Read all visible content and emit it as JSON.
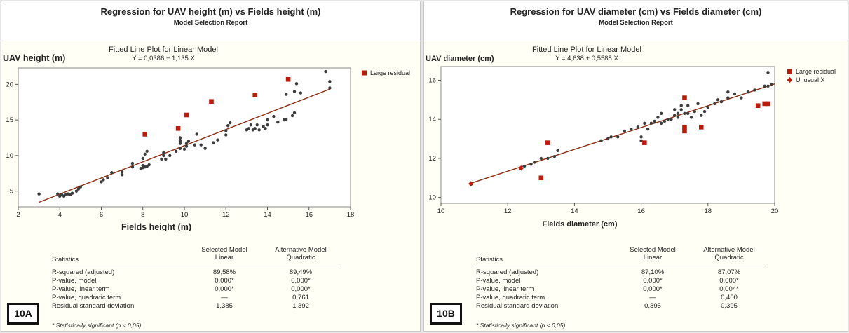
{
  "panels": [
    {
      "id": "A",
      "title": "Regression for UAV height (m) vs Fields height (m)",
      "subtitle": "Model Selection Report",
      "badge": "10A",
      "footnote": "* Statistically significant (p < 0,05)",
      "stats": {
        "col0": "Statistics",
        "col1a": "Selected Model",
        "col1b": "Linear",
        "col2a": "Alternative Model",
        "col2b": "Quadratic",
        "rows": [
          {
            "label": "R-squared (adjusted)",
            "sel": "89,58%",
            "alt": "89,49%"
          },
          {
            "label": "P-value, model",
            "sel": "0,000*",
            "alt": "0,000*"
          },
          {
            "label": "P-value, linear term",
            "sel": "0,000*",
            "alt": "0,000*"
          },
          {
            "label": "P-value, quadratic term",
            "sel": "—",
            "alt": "0,761"
          },
          {
            "label": "Residual standard deviation",
            "sel": "1,385",
            "alt": "1,392"
          }
        ]
      }
    },
    {
      "id": "B",
      "title": "Regression for UAV diameter (cm) vs Fields diameter (cm)",
      "subtitle": "Model Selection Report",
      "badge": "10B",
      "footnote": "* Statistically significant (p < 0,05)",
      "stats": {
        "col0": "Statistics",
        "col1a": "Selected Model",
        "col1b": "Linear",
        "col2a": "Alternative Model",
        "col2b": "Quadratic",
        "rows": [
          {
            "label": "R-squared (adjusted)",
            "sel": "87,10%",
            "alt": "87,07%"
          },
          {
            "label": "P-value, model",
            "sel": "0,000*",
            "alt": "0,000*"
          },
          {
            "label": "P-value, linear term",
            "sel": "0,000*",
            "alt": "0,004*"
          },
          {
            "label": "P-value, quadratic term",
            "sel": "—",
            "alt": "0,400"
          },
          {
            "label": "Residual standard deviation",
            "sel": "0,395",
            "alt": "0,395"
          }
        ]
      }
    }
  ],
  "chart_data": [
    {
      "type": "scatter",
      "title": "Fitted Line Plot for Linear Model",
      "equation": "Y = 0,0386 + 1,135 X",
      "xlabel": "Fields height (m)",
      "ylabel": "UAV height (m)",
      "xlim": [
        2,
        18
      ],
      "ylim": [
        2.8,
        22.3
      ],
      "xticks": [
        2,
        4,
        6,
        8,
        10,
        12,
        14,
        16,
        18
      ],
      "yticks": [
        5,
        10,
        15,
        20
      ],
      "fit": {
        "intercept": 0.0386,
        "slope": 1.135,
        "x_range": [
          3,
          17
        ]
      },
      "colors": {
        "points": "#3c3c3c",
        "fit": "#8b2e10",
        "large_residual": "#b81d0c"
      },
      "legend": [
        {
          "label": "Large residual",
          "marker": "square"
        }
      ],
      "series": [
        {
          "name": "Large residual",
          "marker": "square",
          "points": [
            [
              8.1,
              13.0
            ],
            [
              9.7,
              13.8
            ],
            [
              10.1,
              15.7
            ],
            [
              11.3,
              17.6
            ],
            [
              13.4,
              18.5
            ],
            [
              15.0,
              20.7
            ]
          ]
        },
        {
          "name": "Observations",
          "marker": "circle",
          "points": [
            [
              3.0,
              4.6
            ],
            [
              3.9,
              4.6
            ],
            [
              4.0,
              4.3
            ],
            [
              4.1,
              4.5
            ],
            [
              4.2,
              4.3
            ],
            [
              4.3,
              4.5
            ],
            [
              4.4,
              4.6
            ],
            [
              4.5,
              4.5
            ],
            [
              4.6,
              4.7
            ],
            [
              4.8,
              5.0
            ],
            [
              4.9,
              5.3
            ],
            [
              5.0,
              5.6
            ],
            [
              6.0,
              6.3
            ],
            [
              6.1,
              6.6
            ],
            [
              6.3,
              6.9
            ],
            [
              6.5,
              7.6
            ],
            [
              7.0,
              7.3
            ],
            [
              7.0,
              7.7
            ],
            [
              7.5,
              8.4
            ],
            [
              7.5,
              8.9
            ],
            [
              7.9,
              8.2
            ],
            [
              8.0,
              8.3
            ],
            [
              8.0,
              8.6
            ],
            [
              8.1,
              8.4
            ],
            [
              8.2,
              8.5
            ],
            [
              8.3,
              8.7
            ],
            [
              8.0,
              9.6
            ],
            [
              8.1,
              10.2
            ],
            [
              8.2,
              10.6
            ],
            [
              8.9,
              9.5
            ],
            [
              9.0,
              10.0
            ],
            [
              9.0,
              10.4
            ],
            [
              9.1,
              9.5
            ],
            [
              9.3,
              10.0
            ],
            [
              9.6,
              10.6
            ],
            [
              9.8,
              11.0
            ],
            [
              9.8,
              11.7
            ],
            [
              9.8,
              12.1
            ],
            [
              9.8,
              12.5
            ],
            [
              10.0,
              10.9
            ],
            [
              10.1,
              11.3
            ],
            [
              10.1,
              11.7
            ],
            [
              10.2,
              12.0
            ],
            [
              10.5,
              11.5
            ],
            [
              10.6,
              13.0
            ],
            [
              10.8,
              11.5
            ],
            [
              11.0,
              11.0
            ],
            [
              11.4,
              11.8
            ],
            [
              11.6,
              12.2
            ],
            [
              12.0,
              12.9
            ],
            [
              12.0,
              13.5
            ],
            [
              12.1,
              14.2
            ],
            [
              12.2,
              14.6
            ],
            [
              13.0,
              13.6
            ],
            [
              13.1,
              13.8
            ],
            [
              13.2,
              14.3
            ],
            [
              13.3,
              13.6
            ],
            [
              13.4,
              13.8
            ],
            [
              13.5,
              14.3
            ],
            [
              13.6,
              13.6
            ],
            [
              13.8,
              14.1
            ],
            [
              13.9,
              13.8
            ],
            [
              14.0,
              14.3
            ],
            [
              14.0,
              15.0
            ],
            [
              14.3,
              15.5
            ],
            [
              14.5,
              14.7
            ],
            [
              14.8,
              15.0
            ],
            [
              14.9,
              15.1
            ],
            [
              15.2,
              15.6
            ],
            [
              15.3,
              16.0
            ],
            [
              14.9,
              18.6
            ],
            [
              15.3,
              19.0
            ],
            [
              15.4,
              20.1
            ],
            [
              15.6,
              18.8
            ],
            [
              16.8,
              21.8
            ],
            [
              17.0,
              20.4
            ],
            [
              17.0,
              19.5
            ]
          ]
        }
      ]
    },
    {
      "type": "scatter",
      "title": "Fitted Line Plot for Linear Model",
      "equation": "Y = 4,638 + 0,5588 X",
      "xlabel": "Fields diameter (cm)",
      "ylabel": "UAV diameter (cm)",
      "xlim": [
        10,
        20
      ],
      "ylim": [
        9.7,
        16.7
      ],
      "xticks": [
        10,
        12,
        14,
        16,
        18,
        20
      ],
      "yticks": [
        10,
        12,
        14,
        16
      ],
      "fit": {
        "intercept": 4.638,
        "slope": 0.5588,
        "x_range": [
          10.9,
          20
        ]
      },
      "colors": {
        "points": "#3c3c3c",
        "fit": "#8b2e10",
        "large_residual": "#b81d0c",
        "unusual_x": "#b81d0c"
      },
      "legend": [
        {
          "label": "Large residual",
          "marker": "square"
        },
        {
          "label": "Unusual X",
          "marker": "diamond"
        }
      ],
      "series": [
        {
          "name": "Large residual",
          "marker": "square",
          "points": [
            [
              13.0,
              11.0
            ],
            [
              13.2,
              12.8
            ],
            [
              16.1,
              12.8
            ],
            [
              17.3,
              15.1
            ],
            [
              17.3,
              13.4
            ],
            [
              17.3,
              13.6
            ],
            [
              17.8,
              13.6
            ],
            [
              19.5,
              14.7
            ],
            [
              19.7,
              14.8
            ],
            [
              19.8,
              14.8
            ]
          ]
        },
        {
          "name": "Unusual X",
          "marker": "diamond",
          "points": [
            [
              10.9,
              10.7
            ],
            [
              12.4,
              11.5
            ]
          ]
        },
        {
          "name": "Observations",
          "marker": "circle",
          "points": [
            [
              12.5,
              11.6
            ],
            [
              12.7,
              11.7
            ],
            [
              12.8,
              11.8
            ],
            [
              13.0,
              12.0
            ],
            [
              13.2,
              12.0
            ],
            [
              13.4,
              12.1
            ],
            [
              13.5,
              12.4
            ],
            [
              14.8,
              12.9
            ],
            [
              15.0,
              13.0
            ],
            [
              15.1,
              13.1
            ],
            [
              15.3,
              13.1
            ],
            [
              15.5,
              13.4
            ],
            [
              15.7,
              13.5
            ],
            [
              15.9,
              13.6
            ],
            [
              16.0,
              13.1
            ],
            [
              16.0,
              12.9
            ],
            [
              16.1,
              13.8
            ],
            [
              16.2,
              13.5
            ],
            [
              16.3,
              13.8
            ],
            [
              16.4,
              13.9
            ],
            [
              16.5,
              14.1
            ],
            [
              16.6,
              13.8
            ],
            [
              16.6,
              14.3
            ],
            [
              16.7,
              13.9
            ],
            [
              16.8,
              14.0
            ],
            [
              16.9,
              14.0
            ],
            [
              17.0,
              14.2
            ],
            [
              17.0,
              14.5
            ],
            [
              17.1,
              14.1
            ],
            [
              17.1,
              14.3
            ],
            [
              17.2,
              14.5
            ],
            [
              17.2,
              14.7
            ],
            [
              17.3,
              14.3
            ],
            [
              17.4,
              14.3
            ],
            [
              17.4,
              14.7
            ],
            [
              17.5,
              14.1
            ],
            [
              17.6,
              14.4
            ],
            [
              17.7,
              14.8
            ],
            [
              17.8,
              14.2
            ],
            [
              17.9,
              14.4
            ],
            [
              18.0,
              14.6
            ],
            [
              18.2,
              14.8
            ],
            [
              18.3,
              15.0
            ],
            [
              18.4,
              14.9
            ],
            [
              18.6,
              15.1
            ],
            [
              18.6,
              15.4
            ],
            [
              18.8,
              15.3
            ],
            [
              19.0,
              15.1
            ],
            [
              19.2,
              15.4
            ],
            [
              19.4,
              15.5
            ],
            [
              19.7,
              15.7
            ],
            [
              19.8,
              15.7
            ],
            [
              19.9,
              15.8
            ],
            [
              19.8,
              16.4
            ]
          ]
        }
      ]
    }
  ]
}
